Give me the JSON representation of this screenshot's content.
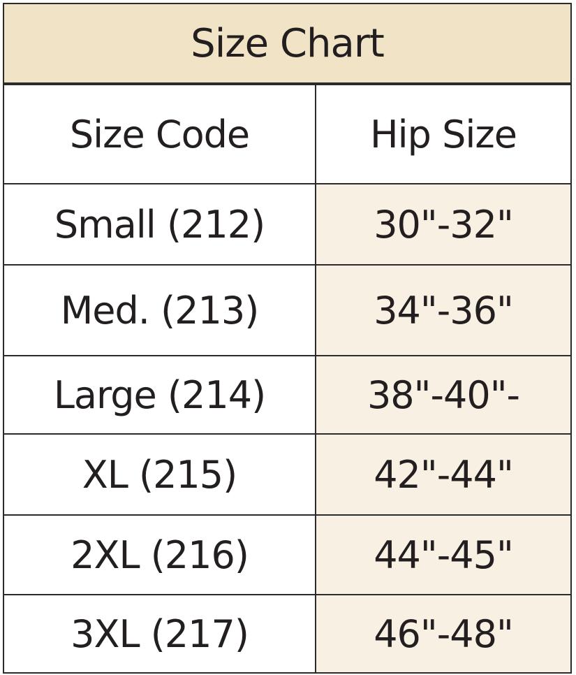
{
  "table": {
    "title": "Size Chart",
    "columns": [
      "Size Code",
      "Hip Size"
    ],
    "rows": [
      [
        "Small (212)",
        "30\"-32\""
      ],
      [
        "Med. (213)",
        "34\"-36\""
      ],
      [
        "Large (214)",
        "38\"-40\"-"
      ],
      [
        "XL (215)",
        "42\"-44\""
      ],
      [
        "2XL (216)",
        "44\"-45\""
      ],
      [
        "3XL (217)",
        "46\"-48\""
      ]
    ]
  }
}
